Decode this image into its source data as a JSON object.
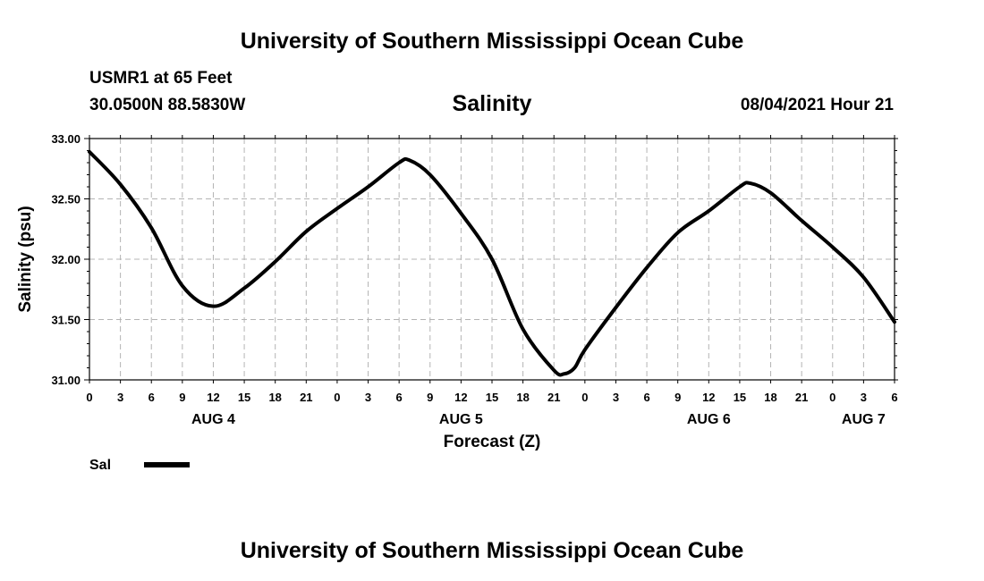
{
  "header": {
    "title": "University of Southern Mississippi Ocean Cube",
    "station": "USMR1 at 65 Feet",
    "coords": "30.0500N  88.5830W",
    "variable": "Salinity",
    "datetime": "08/04/2021 Hour 21"
  },
  "footer": {
    "title": "University of Southern Mississippi Ocean Cube"
  },
  "legend": {
    "label": "Sal",
    "color": "#000000"
  },
  "chart_data": {
    "type": "line",
    "xlabel": "Forecast (Z)",
    "ylabel": "Salinity (psu)",
    "ylim": [
      31.0,
      33.0
    ],
    "yticks": [
      "31.00",
      "31.50",
      "32.00",
      "32.50",
      "33.00"
    ],
    "xlim": [
      0,
      78
    ],
    "xticks": [
      "0",
      "3",
      "6",
      "9",
      "12",
      "15",
      "18",
      "21",
      "0",
      "3",
      "6",
      "9",
      "12",
      "15",
      "18",
      "21",
      "0",
      "3",
      "6",
      "9",
      "12",
      "15",
      "18",
      "21",
      "0",
      "3",
      "6"
    ],
    "day_labels": [
      {
        "label": "AUG 4",
        "at": 12
      },
      {
        "label": "AUG 5",
        "at": 36
      },
      {
        "label": "AUG 6",
        "at": 60
      },
      {
        "label": "AUG 7",
        "at": 75
      }
    ],
    "grid": true,
    "series": [
      {
        "name": "Sal",
        "color": "#000000",
        "x": [
          0,
          3,
          6,
          9,
          12,
          15,
          18,
          21,
          24,
          27,
          30,
          31,
          33,
          36,
          39,
          42,
          45,
          46,
          47,
          48,
          51,
          54,
          57,
          60,
          63,
          64,
          66,
          69,
          72,
          75,
          78
        ],
        "y": [
          32.89,
          32.62,
          32.26,
          31.78,
          31.61,
          31.76,
          31.98,
          32.23,
          32.42,
          32.6,
          32.8,
          32.82,
          32.7,
          32.38,
          32.0,
          31.42,
          31.08,
          31.05,
          31.1,
          31.25,
          31.6,
          31.93,
          32.22,
          32.4,
          32.6,
          32.63,
          32.55,
          32.32,
          32.1,
          31.85,
          31.48
        ]
      }
    ]
  }
}
